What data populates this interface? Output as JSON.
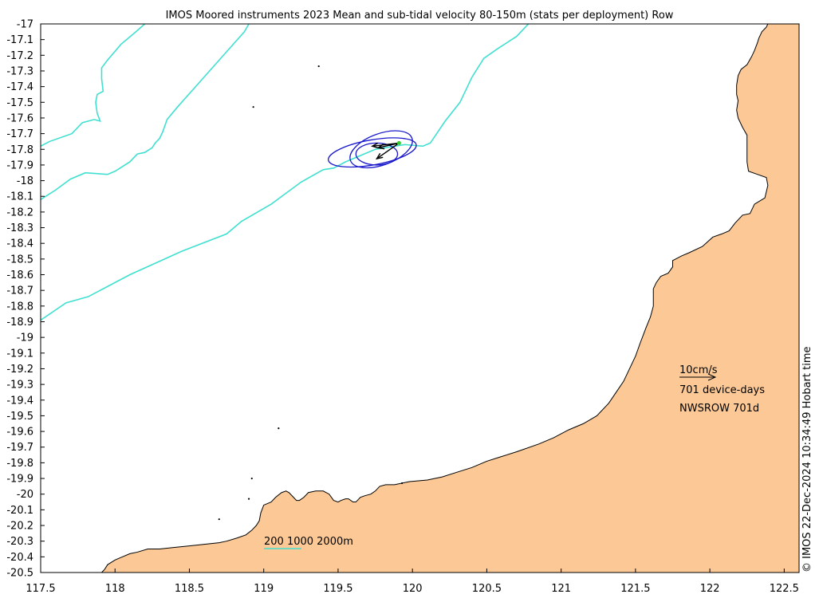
{
  "title": "IMOS Moored instruments 2023 Mean and sub-tidal velocity 80-150m (stats per deployment) Row",
  "credit": "© IMOS 22-Dec-2024 10:34:49 Hobart time",
  "colors": {
    "land": "#fcc996",
    "bathymetry": "#40e0d0",
    "ellipse": "#1a1acc",
    "arrow": "#000000",
    "station": "#33cc33"
  },
  "chart_data": {
    "type": "map",
    "xlim": [
      117.5,
      122.6
    ],
    "ylim": [
      -20.5,
      -17.0
    ],
    "x_ticks": [
      "117.5",
      "118",
      "118.5",
      "119",
      "119.5",
      "120",
      "120.5",
      "121",
      "121.5",
      "122",
      "122.5"
    ],
    "y_ticks": [
      "-17",
      "-17.1",
      "-17.2",
      "-17.3",
      "-17.4",
      "-17.5",
      "-17.6",
      "-17.7",
      "-17.8",
      "-17.9",
      "-18",
      "-18.1",
      "-18.2",
      "-18.3",
      "-18.4",
      "-18.5",
      "-18.6",
      "-18.7",
      "-18.8",
      "-18.9",
      "-19",
      "-19.1",
      "-19.2",
      "-19.3",
      "-19.4",
      "-19.5",
      "-19.6",
      "-19.7",
      "-19.8",
      "-19.9",
      "-20",
      "-20.1",
      "-20.2",
      "-20.3",
      "-20.4",
      "-20.5"
    ],
    "isobaths": [
      {
        "depth": 200,
        "points": [
          [
            117.5,
            -18.89
          ],
          [
            117.67,
            -18.78
          ],
          [
            117.82,
            -18.74
          ],
          [
            118.1,
            -18.6
          ],
          [
            118.45,
            -18.45
          ],
          [
            118.75,
            -18.34
          ],
          [
            118.85,
            -18.26
          ],
          [
            119.05,
            -18.15
          ],
          [
            119.25,
            -18.01
          ],
          [
            119.4,
            -17.93
          ],
          [
            119.47,
            -17.92
          ],
          [
            119.55,
            -17.88
          ],
          [
            119.75,
            -17.8
          ],
          [
            119.95,
            -17.77
          ],
          [
            120.07,
            -17.78
          ],
          [
            120.12,
            -17.76
          ],
          [
            120.22,
            -17.62
          ],
          [
            120.32,
            -17.5
          ],
          [
            120.4,
            -17.34
          ],
          [
            120.48,
            -17.22
          ],
          [
            120.57,
            -17.16
          ],
          [
            120.7,
            -17.08
          ],
          [
            120.78,
            -17.0
          ]
        ]
      },
      {
        "depth": 1000,
        "points": [
          [
            117.5,
            -18.12
          ],
          [
            117.6,
            -18.06
          ],
          [
            117.7,
            -17.99
          ],
          [
            117.8,
            -17.95
          ],
          [
            117.95,
            -17.96
          ],
          [
            118.0,
            -17.94
          ],
          [
            118.1,
            -17.88
          ],
          [
            118.15,
            -17.83
          ],
          [
            118.2,
            -17.82
          ],
          [
            118.25,
            -17.79
          ],
          [
            118.27,
            -17.76
          ],
          [
            118.3,
            -17.73
          ],
          [
            118.32,
            -17.69
          ],
          [
            118.35,
            -17.61
          ],
          [
            118.42,
            -17.53
          ],
          [
            118.57,
            -17.37
          ],
          [
            118.72,
            -17.21
          ],
          [
            118.87,
            -17.05
          ],
          [
            118.9,
            -17.0
          ]
        ]
      },
      {
        "depth": 2000,
        "points": [
          [
            117.5,
            -17.78
          ],
          [
            117.56,
            -17.75
          ],
          [
            117.71,
            -17.7
          ],
          [
            117.78,
            -17.63
          ],
          [
            117.86,
            -17.61
          ],
          [
            117.9,
            -17.62
          ],
          [
            117.88,
            -17.57
          ],
          [
            117.87,
            -17.5
          ],
          [
            117.88,
            -17.45
          ],
          [
            117.92,
            -17.43
          ],
          [
            117.91,
            -17.35
          ],
          [
            117.91,
            -17.28
          ],
          [
            117.95,
            -17.23
          ],
          [
            118.04,
            -17.13
          ],
          [
            118.14,
            -17.05
          ],
          [
            118.2,
            -17.0
          ]
        ]
      }
    ],
    "coastline": [
      [
        122.39,
        -17.0
      ],
      [
        122.38,
        -17.02
      ],
      [
        122.35,
        -17.05
      ],
      [
        122.33,
        -17.09
      ],
      [
        122.32,
        -17.12
      ],
      [
        122.3,
        -17.17
      ],
      [
        122.28,
        -17.21
      ],
      [
        122.25,
        -17.26
      ],
      [
        122.21,
        -17.29
      ],
      [
        122.19,
        -17.33
      ],
      [
        122.18,
        -17.39
      ],
      [
        122.18,
        -17.45
      ],
      [
        122.19,
        -17.49
      ],
      [
        122.18,
        -17.55
      ],
      [
        122.19,
        -17.6
      ],
      [
        122.22,
        -17.66
      ],
      [
        122.25,
        -17.71
      ],
      [
        122.25,
        -17.78
      ],
      [
        122.25,
        -17.88
      ],
      [
        122.26,
        -17.94
      ],
      [
        122.32,
        -17.96
      ],
      [
        122.38,
        -17.98
      ],
      [
        122.39,
        -18.03
      ],
      [
        122.37,
        -18.11
      ],
      [
        122.3,
        -18.15
      ],
      [
        122.27,
        -18.21
      ],
      [
        122.22,
        -18.22
      ],
      [
        122.17,
        -18.27
      ],
      [
        122.13,
        -18.32
      ],
      [
        122.08,
        -18.34
      ],
      [
        122.02,
        -18.36
      ],
      [
        121.95,
        -18.42
      ],
      [
        121.86,
        -18.46
      ],
      [
        121.81,
        -18.48
      ],
      [
        121.75,
        -18.51
      ],
      [
        121.75,
        -18.55
      ],
      [
        121.72,
        -18.59
      ],
      [
        121.67,
        -18.61
      ],
      [
        121.64,
        -18.65
      ],
      [
        121.62,
        -18.69
      ],
      [
        121.62,
        -18.74
      ],
      [
        121.62,
        -18.8
      ],
      [
        121.6,
        -18.87
      ],
      [
        121.57,
        -18.94
      ],
      [
        121.55,
        -18.99
      ],
      [
        121.53,
        -19.04
      ],
      [
        121.5,
        -19.12
      ],
      [
        121.46,
        -19.2
      ],
      [
        121.42,
        -19.28
      ],
      [
        121.37,
        -19.35
      ],
      [
        121.32,
        -19.42
      ],
      [
        121.24,
        -19.5
      ],
      [
        121.15,
        -19.55
      ],
      [
        121.05,
        -19.59
      ],
      [
        120.95,
        -19.64
      ],
      [
        120.85,
        -19.68
      ],
      [
        120.7,
        -19.73
      ],
      [
        120.6,
        -19.76
      ],
      [
        120.5,
        -19.79
      ],
      [
        120.4,
        -19.83
      ],
      [
        120.3,
        -19.86
      ],
      [
        120.2,
        -19.89
      ],
      [
        120.1,
        -19.91
      ],
      [
        119.98,
        -19.92
      ],
      [
        119.88,
        -19.94
      ],
      [
        119.82,
        -19.94
      ],
      [
        119.78,
        -19.95
      ],
      [
        119.75,
        -19.98
      ],
      [
        119.72,
        -20.0
      ],
      [
        119.68,
        -20.01
      ],
      [
        119.65,
        -20.02
      ],
      [
        119.62,
        -20.05
      ],
      [
        119.6,
        -20.05
      ],
      [
        119.57,
        -20.03
      ],
      [
        119.55,
        -20.03
      ],
      [
        119.52,
        -20.04
      ],
      [
        119.5,
        -20.05
      ],
      [
        119.47,
        -20.04
      ],
      [
        119.44,
        -20.0
      ],
      [
        119.4,
        -19.98
      ],
      [
        119.35,
        -19.98
      ],
      [
        119.3,
        -19.99
      ],
      [
        119.27,
        -20.02
      ],
      [
        119.24,
        -20.04
      ],
      [
        119.22,
        -20.04
      ],
      [
        119.2,
        -20.02
      ],
      [
        119.17,
        -19.99
      ],
      [
        119.15,
        -19.98
      ],
      [
        119.12,
        -19.99
      ],
      [
        119.08,
        -20.02
      ],
      [
        119.05,
        -20.05
      ],
      [
        119.0,
        -20.07
      ],
      [
        118.98,
        -20.12
      ],
      [
        118.97,
        -20.17
      ],
      [
        118.95,
        -20.2
      ],
      [
        118.92,
        -20.23
      ],
      [
        118.88,
        -20.26
      ],
      [
        118.82,
        -20.28
      ],
      [
        118.75,
        -20.3
      ],
      [
        118.7,
        -20.31
      ],
      [
        118.6,
        -20.32
      ],
      [
        118.5,
        -20.33
      ],
      [
        118.4,
        -20.34
      ],
      [
        118.3,
        -20.35
      ],
      [
        118.22,
        -20.35
      ],
      [
        118.15,
        -20.37
      ],
      [
        118.1,
        -20.38
      ],
      [
        118.05,
        -20.4
      ],
      [
        118.0,
        -20.42
      ],
      [
        117.95,
        -20.45
      ],
      [
        117.93,
        -20.48
      ],
      [
        117.91,
        -20.5
      ]
    ],
    "islands": [
      [
        119.37,
        -17.27
      ],
      [
        118.93,
        -17.53
      ],
      [
        119.1,
        -19.58
      ],
      [
        118.92,
        -19.9
      ],
      [
        118.9,
        -20.03
      ],
      [
        118.7,
        -20.16
      ],
      [
        119.93,
        -19.93
      ]
    ],
    "mooring": {
      "name": "NWSROW",
      "lon": 119.91,
      "lat": -17.76,
      "mean_velocity_cms": 6.5,
      "ellipses": [
        {
          "cx": 119.79,
          "cy": -17.8,
          "rx": 0.22,
          "ry": 0.1,
          "rot": -20
        },
        {
          "cx": 119.73,
          "cy": -17.82,
          "rx": 0.3,
          "ry": 0.08,
          "rot": -10
        },
        {
          "cx": 119.76,
          "cy": -17.83,
          "rx": 0.14,
          "ry": 0.07,
          "rot": 0
        }
      ],
      "arrows": [
        {
          "x1": 119.91,
          "y1": -17.76,
          "x2": 119.77,
          "y2": -17.79
        },
        {
          "x1": 119.91,
          "y1": -17.76,
          "x2": 119.73,
          "y2": -17.78
        },
        {
          "x1": 119.91,
          "y1": -17.76,
          "x2": 119.76,
          "y2": -17.86
        }
      ]
    },
    "scale_arrow_label": "10cm/s",
    "device_days_label": "701 device-days",
    "site_label": "NWSROW 701d",
    "isobath_legend_label": "200 1000 2000m"
  }
}
